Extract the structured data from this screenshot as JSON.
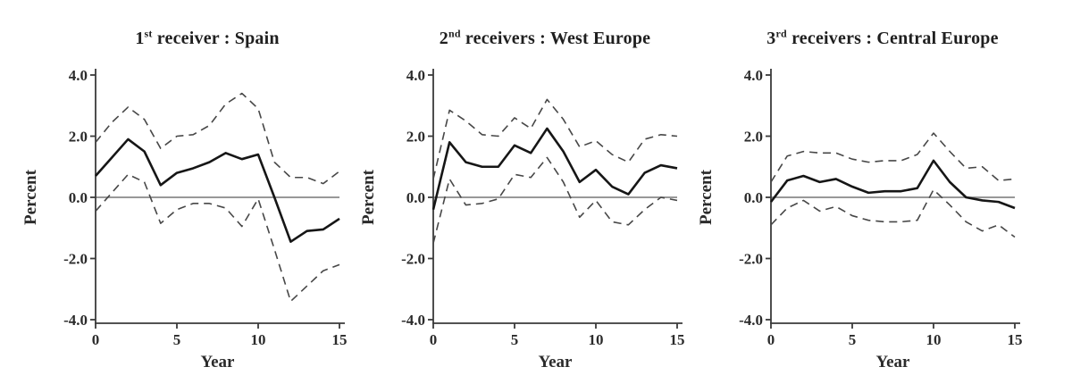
{
  "figure": {
    "background": "#ffffff",
    "xlabel": "Year",
    "ylabel": "Percent",
    "y_tick_labels": [
      "4.0",
      "2.0",
      "0.0",
      "-2.0",
      "-4.0"
    ],
    "x_tick_labels": [
      "0",
      "5",
      "10",
      "15"
    ]
  },
  "colors": {
    "solid_line": "#161616",
    "dashed_band": "#474747",
    "zero_line": "#8a8a8a",
    "axis": "#3a3a3a",
    "tick_text": "#2b2b2b",
    "title_text": "#1f1f1f"
  },
  "chart_data": [
    {
      "type": "line",
      "title": "1st receiver : Spain",
      "title_parts": {
        "num": "1",
        "ordinal": "st",
        "rest": " receiver : Spain"
      },
      "xlabel": "Year",
      "ylabel": "Percent",
      "x": [
        0,
        1,
        2,
        3,
        4,
        5,
        6,
        7,
        8,
        9,
        10,
        11,
        12,
        13,
        14,
        15
      ],
      "xlim": [
        0,
        15
      ],
      "ylim": [
        -4,
        4
      ],
      "x_tick_values": [
        0,
        5,
        10,
        15
      ],
      "x_tick_labels": [
        "0",
        "5",
        "10",
        "15"
      ],
      "y_tick_values": [
        4,
        2,
        0,
        -2,
        -4
      ],
      "y_tick_labels": [
        "4.0",
        "2.0",
        "0.0",
        "-2.0",
        "-4.0"
      ],
      "zero_line": true,
      "grid": false,
      "legend": "none",
      "series": [
        {
          "name": "estimate",
          "style": "solid",
          "values": [
            0.7,
            1.3,
            1.9,
            1.5,
            0.4,
            0.8,
            0.95,
            1.15,
            1.45,
            1.25,
            1.4,
            0.0,
            -1.45,
            -1.1,
            -1.05,
            -0.7
          ]
        },
        {
          "name": "upper-band",
          "style": "dashed",
          "values": [
            1.8,
            2.45,
            2.95,
            2.55,
            1.6,
            2.0,
            2.05,
            2.35,
            3.05,
            3.4,
            2.9,
            1.15,
            0.65,
            0.65,
            0.45,
            0.85
          ]
        },
        {
          "name": "lower-band",
          "style": "dashed",
          "values": [
            -0.45,
            0.15,
            0.75,
            0.5,
            -0.85,
            -0.4,
            -0.2,
            -0.2,
            -0.35,
            -0.95,
            -0.05,
            -1.7,
            -3.4,
            -2.9,
            -2.4,
            -2.2
          ]
        }
      ]
    },
    {
      "type": "line",
      "title": "2nd receivers : West Europe",
      "title_parts": {
        "num": "2",
        "ordinal": "nd",
        "rest": " receivers : West Europe"
      },
      "xlabel": "Year",
      "ylabel": "Percent",
      "x": [
        0,
        1,
        2,
        3,
        4,
        5,
        6,
        7,
        8,
        9,
        10,
        11,
        12,
        13,
        14,
        15
      ],
      "xlim": [
        0,
        15
      ],
      "ylim": [
        -4,
        4
      ],
      "x_tick_values": [
        0,
        5,
        10,
        15
      ],
      "x_tick_labels": [
        "0",
        "5",
        "10",
        "15"
      ],
      "y_tick_values": [
        4,
        2,
        0,
        -2,
        -4
      ],
      "y_tick_labels": [
        "4.0",
        "2.0",
        "0.0",
        "-2.0",
        "-4.0"
      ],
      "zero_line": true,
      "grid": false,
      "legend": "none",
      "series": [
        {
          "name": "estimate",
          "style": "solid",
          "values": [
            -0.4,
            1.8,
            1.15,
            1.0,
            1.0,
            1.7,
            1.45,
            2.25,
            1.5,
            0.5,
            0.9,
            0.35,
            0.1,
            0.8,
            1.05,
            0.95
          ]
        },
        {
          "name": "upper-band",
          "style": "dashed",
          "values": [
            0.6,
            2.85,
            2.5,
            2.05,
            2.0,
            2.6,
            2.25,
            3.2,
            2.55,
            1.65,
            1.85,
            1.4,
            1.15,
            1.9,
            2.05,
            2.0
          ]
        },
        {
          "name": "lower-band",
          "style": "dashed",
          "values": [
            -1.5,
            0.6,
            -0.25,
            -0.2,
            -0.05,
            0.75,
            0.65,
            1.3,
            0.5,
            -0.65,
            -0.1,
            -0.8,
            -0.9,
            -0.4,
            0.0,
            -0.1
          ]
        }
      ]
    },
    {
      "type": "line",
      "title": "3rd receivers : Central Europe",
      "title_parts": {
        "num": "3",
        "ordinal": "rd",
        "rest": " receivers : Central Europe"
      },
      "xlabel": "Year",
      "ylabel": "Percent",
      "x": [
        0,
        1,
        2,
        3,
        4,
        5,
        6,
        7,
        8,
        9,
        10,
        11,
        12,
        13,
        14,
        15
      ],
      "xlim": [
        0,
        15
      ],
      "ylim": [
        -4,
        4
      ],
      "x_tick_values": [
        0,
        5,
        10,
        15
      ],
      "x_tick_labels": [
        "0",
        "5",
        "10",
        "15"
      ],
      "y_tick_values": [
        4,
        2,
        0,
        -2,
        -4
      ],
      "y_tick_labels": [
        "4.0",
        "2.0",
        "0.0",
        "-2.0",
        "-4.0"
      ],
      "zero_line": true,
      "grid": false,
      "legend": "none",
      "series": [
        {
          "name": "estimate",
          "style": "solid",
          "values": [
            -0.15,
            0.55,
            0.7,
            0.5,
            0.6,
            0.35,
            0.15,
            0.2,
            0.2,
            0.3,
            1.2,
            0.5,
            0.0,
            -0.1,
            -0.15,
            -0.35
          ]
        },
        {
          "name": "upper-band",
          "style": "dashed",
          "values": [
            0.5,
            1.35,
            1.5,
            1.45,
            1.45,
            1.25,
            1.15,
            1.2,
            1.2,
            1.4,
            2.1,
            1.5,
            0.95,
            1.0,
            0.55,
            0.6
          ]
        },
        {
          "name": "lower-band",
          "style": "dashed",
          "values": [
            -0.9,
            -0.35,
            -0.1,
            -0.45,
            -0.3,
            -0.6,
            -0.75,
            -0.8,
            -0.8,
            -0.75,
            0.25,
            -0.25,
            -0.8,
            -1.1,
            -0.9,
            -1.3
          ]
        }
      ]
    }
  ]
}
